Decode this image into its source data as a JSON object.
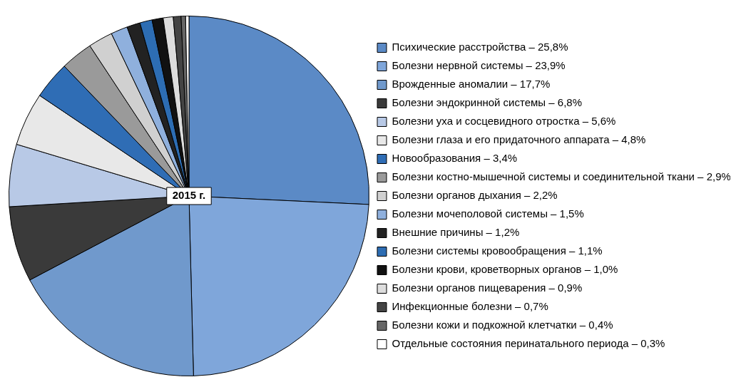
{
  "chart_data": {
    "type": "pie",
    "categories": [
      "Психические расстройства – 25,8%",
      "Болезни нервной системы – 23,9%",
      "Врожденные аномалии – 17,7%",
      "Болезни эндокринной системы – 6,8%",
      "Болезни уха и сосцевидного отростка – 5,6%",
      "Болезни глаза и его придаточного аппарата – 4,8%",
      "Новообразования – 3,4%",
      "Болезни костно-мышечной системы и соединительной ткани – 2,9%",
      "Болезни органов дыхания – 2,2%",
      "Болезни мочеполовой системы – 1,5%",
      "Внешние причины – 1,2%",
      "Болезни системы кровообращения – 1,1%",
      "Болезни крови, кроветворных органов – 1,0%",
      "Болезни органов пищеварения – 0,9%",
      "Инфекционные болезни – 0,7%",
      "Болезни кожи и подкожной клетчатки – 0,4%",
      "Отдельные состояния перинатального периода – 0,3%"
    ],
    "values": [
      25.8,
      23.9,
      17.7,
      6.8,
      5.6,
      4.8,
      3.4,
      2.9,
      2.2,
      1.5,
      1.2,
      1.1,
      1.0,
      0.9,
      0.7,
      0.4,
      0.3
    ],
    "colors": [
      "#5b8ac6",
      "#7fa6da",
      "#7099cc",
      "#3a3a3a",
      "#b8c9e6",
      "#e8e8e8",
      "#2f6db5",
      "#9a9a9a",
      "#d0d0d0",
      "#8fb0dd",
      "#222222",
      "#2d6db3",
      "#111111",
      "#dddddd",
      "#444444",
      "#666666",
      "#ffffff"
    ],
    "legend": "right",
    "annotations": [
      "2015 г."
    ]
  }
}
